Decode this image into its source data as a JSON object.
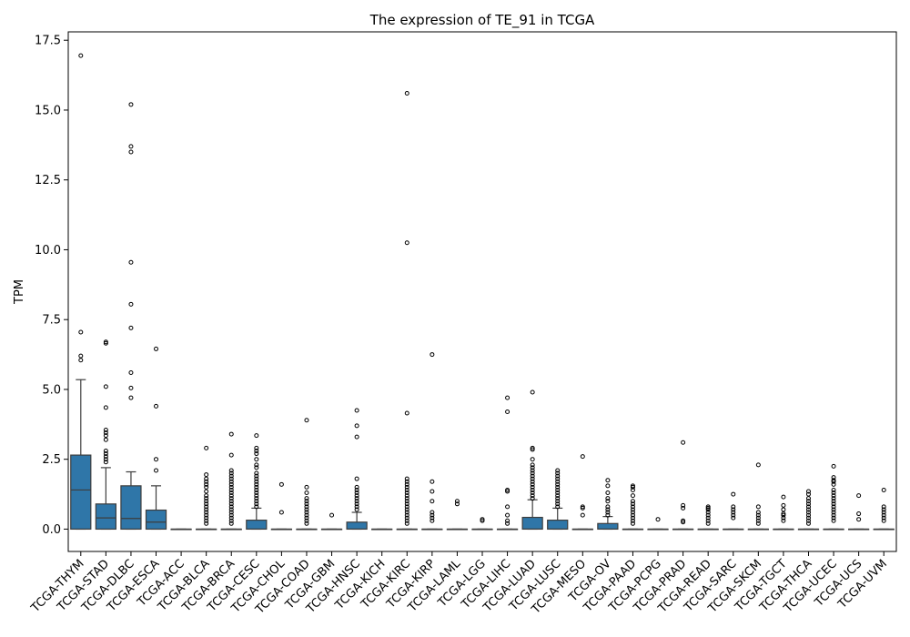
{
  "chart_data": {
    "type": "box",
    "title": "The expression of TE_91 in TCGA",
    "xlabel": "",
    "ylabel": "TPM",
    "ylim": [
      -0.8,
      17.8
    ],
    "yticks": [
      0.0,
      2.5,
      5.0,
      7.5,
      10.0,
      12.5,
      15.0,
      17.5
    ],
    "ytick_labels": [
      "0.0",
      "2.5",
      "5.0",
      "7.5",
      "10.0",
      "12.5",
      "15.0",
      "17.5"
    ],
    "box_color": "#2f76a8",
    "grid": false,
    "categories": [
      "TCGA-THYM",
      "TCGA-STAD",
      "TCGA-DLBC",
      "TCGA-ESCA",
      "TCGA-ACC",
      "TCGA-BLCA",
      "TCGA-BRCA",
      "TCGA-CESC",
      "TCGA-CHOL",
      "TCGA-COAD",
      "TCGA-GBM",
      "TCGA-HNSC",
      "TCGA-KICH",
      "TCGA-KIRC",
      "TCGA-KIRP",
      "TCGA-LAML",
      "TCGA-LGG",
      "TCGA-LIHC",
      "TCGA-LUAD",
      "TCGA-LUSC",
      "TCGA-MESO",
      "TCGA-OV",
      "TCGA-PAAD",
      "TCGA-PCPG",
      "TCGA-PRAD",
      "TCGA-READ",
      "TCGA-SARC",
      "TCGA-SKCM",
      "TCGA-TGCT",
      "TCGA-THCA",
      "TCGA-UCEC",
      "TCGA-UCS",
      "TCGA-UVM"
    ],
    "boxes": [
      {
        "q1": 0.0,
        "median": 1.4,
        "q3": 2.65,
        "whislo": 0.0,
        "whishi": 5.35,
        "fliers": [
          16.95,
          7.05,
          6.2,
          6.05
        ]
      },
      {
        "q1": 0.0,
        "median": 0.4,
        "q3": 0.9,
        "whislo": 0.0,
        "whishi": 2.2,
        "fliers": [
          6.7,
          6.65,
          5.1,
          4.35,
          3.55,
          3.45,
          3.35,
          3.2,
          2.8,
          2.7,
          2.6,
          2.5,
          2.4
        ]
      },
      {
        "q1": 0.0,
        "median": 0.38,
        "q3": 1.55,
        "whislo": 0.0,
        "whishi": 2.05,
        "fliers": [
          15.2,
          13.7,
          13.5,
          9.55,
          8.05,
          7.2,
          5.6,
          5.05,
          4.7
        ]
      },
      {
        "q1": 0.0,
        "median": 0.25,
        "q3": 0.68,
        "whislo": 0.0,
        "whishi": 1.55,
        "fliers": [
          6.45,
          4.4,
          2.5,
          2.1
        ]
      },
      {
        "q1": 0.0,
        "median": 0.0,
        "q3": 0.0,
        "whislo": 0.0,
        "whishi": 0.0,
        "fliers": []
      },
      {
        "q1": 0.0,
        "median": 0.0,
        "q3": 0.0,
        "whislo": 0.0,
        "whishi": 0.0,
        "fliers": [
          2.9,
          1.95,
          1.8,
          1.7,
          1.6,
          1.5,
          1.35,
          1.2,
          1.1,
          1.0,
          0.9,
          0.8,
          0.7,
          0.6,
          0.5,
          0.4,
          0.3,
          0.2
        ]
      },
      {
        "q1": 0.0,
        "median": 0.0,
        "q3": 0.0,
        "whislo": 0.0,
        "whishi": 0.0,
        "fliers": [
          3.4,
          2.65,
          2.1,
          2.0,
          1.9,
          1.8,
          1.7,
          1.6,
          1.5,
          1.4,
          1.3,
          1.2,
          1.1,
          1.0,
          0.9,
          0.8,
          0.7,
          0.6,
          0.5,
          0.4,
          0.3,
          0.2
        ]
      },
      {
        "q1": 0.0,
        "median": 0.0,
        "q3": 0.32,
        "whislo": 0.0,
        "whishi": 0.75,
        "fliers": [
          3.35,
          2.9,
          2.8,
          2.7,
          2.5,
          2.3,
          2.2,
          2.0,
          1.9,
          1.8,
          1.7,
          1.6,
          1.5,
          1.4,
          1.3,
          1.2,
          1.1,
          1.0,
          0.9,
          0.8
        ]
      },
      {
        "q1": 0.0,
        "median": 0.0,
        "q3": 0.0,
        "whislo": 0.0,
        "whishi": 0.0,
        "fliers": [
          1.6,
          0.6
        ]
      },
      {
        "q1": 0.0,
        "median": 0.0,
        "q3": 0.0,
        "whislo": 0.0,
        "whishi": 0.0,
        "fliers": [
          3.9,
          1.5,
          1.3,
          1.1,
          1.0,
          0.9,
          0.8,
          0.7,
          0.6,
          0.5,
          0.4,
          0.3,
          0.2
        ]
      },
      {
        "q1": 0.0,
        "median": 0.0,
        "q3": 0.0,
        "whislo": 0.0,
        "whishi": 0.0,
        "fliers": [
          0.5
        ]
      },
      {
        "q1": 0.0,
        "median": 0.0,
        "q3": 0.25,
        "whislo": 0.0,
        "whishi": 0.6,
        "fliers": [
          4.25,
          3.7,
          3.3,
          1.8,
          1.5,
          1.4,
          1.3,
          1.2,
          1.1,
          1.0,
          0.9,
          0.8,
          0.7
        ]
      },
      {
        "q1": 0.0,
        "median": 0.0,
        "q3": 0.0,
        "whislo": 0.0,
        "whishi": 0.0,
        "fliers": []
      },
      {
        "q1": 0.0,
        "median": 0.0,
        "q3": 0.0,
        "whislo": 0.0,
        "whishi": 0.0,
        "fliers": [
          15.6,
          10.25,
          4.15,
          1.8,
          1.7,
          1.6,
          1.5,
          1.4,
          1.3,
          1.2,
          1.1,
          1.0,
          0.9,
          0.8,
          0.7,
          0.6,
          0.5,
          0.4,
          0.3,
          0.2
        ]
      },
      {
        "q1": 0.0,
        "median": 0.0,
        "q3": 0.0,
        "whislo": 0.0,
        "whishi": 0.0,
        "fliers": [
          6.25,
          1.7,
          1.35,
          1.0,
          0.6,
          0.5,
          0.4,
          0.3
        ]
      },
      {
        "q1": 0.0,
        "median": 0.0,
        "q3": 0.0,
        "whislo": 0.0,
        "whishi": 0.0,
        "fliers": [
          1.0,
          0.9
        ]
      },
      {
        "q1": 0.0,
        "median": 0.0,
        "q3": 0.0,
        "whislo": 0.0,
        "whishi": 0.0,
        "fliers": [
          0.35,
          0.3
        ]
      },
      {
        "q1": 0.0,
        "median": 0.0,
        "q3": 0.0,
        "whislo": 0.0,
        "whishi": 0.0,
        "fliers": [
          4.7,
          4.2,
          1.4,
          1.35,
          0.8,
          0.5,
          0.3,
          0.2
        ]
      },
      {
        "q1": 0.0,
        "median": 0.0,
        "q3": 0.42,
        "whislo": 0.0,
        "whishi": 1.05,
        "fliers": [
          4.9,
          2.9,
          2.85,
          2.5,
          2.3,
          2.2,
          2.1,
          2.0,
          1.9,
          1.8,
          1.7,
          1.6,
          1.5,
          1.4,
          1.3,
          1.2,
          1.1
        ]
      },
      {
        "q1": 0.0,
        "median": 0.0,
        "q3": 0.32,
        "whislo": 0.0,
        "whishi": 0.75,
        "fliers": [
          2.1,
          2.0,
          1.9,
          1.8,
          1.7,
          1.6,
          1.5,
          1.4,
          1.3,
          1.2,
          1.1,
          1.0,
          0.9,
          0.8
        ]
      },
      {
        "q1": 0.0,
        "median": 0.0,
        "q3": 0.0,
        "whislo": 0.0,
        "whishi": 0.0,
        "fliers": [
          2.6,
          0.8,
          0.75,
          0.5
        ]
      },
      {
        "q1": 0.0,
        "median": 0.0,
        "q3": 0.2,
        "whislo": 0.0,
        "whishi": 0.45,
        "fliers": [
          1.75,
          1.55,
          1.3,
          1.1,
          1.0,
          0.8,
          0.7,
          0.6,
          0.5
        ]
      },
      {
        "q1": 0.0,
        "median": 0.0,
        "q3": 0.0,
        "whislo": 0.0,
        "whishi": 0.0,
        "fliers": [
          1.55,
          1.5,
          1.4,
          1.2,
          1.0,
          0.9,
          0.8,
          0.7,
          0.6,
          0.5,
          0.4,
          0.3,
          0.2
        ]
      },
      {
        "q1": 0.0,
        "median": 0.0,
        "q3": 0.0,
        "whislo": 0.0,
        "whishi": 0.0,
        "fliers": [
          0.35
        ]
      },
      {
        "q1": 0.0,
        "median": 0.0,
        "q3": 0.0,
        "whislo": 0.0,
        "whishi": 0.0,
        "fliers": [
          3.1,
          0.85,
          0.75,
          0.3,
          0.25
        ]
      },
      {
        "q1": 0.0,
        "median": 0.0,
        "q3": 0.0,
        "whislo": 0.0,
        "whishi": 0.0,
        "fliers": [
          0.8,
          0.75,
          0.7,
          0.6,
          0.5,
          0.4,
          0.3,
          0.2
        ]
      },
      {
        "q1": 0.0,
        "median": 0.0,
        "q3": 0.0,
        "whislo": 0.0,
        "whishi": 0.0,
        "fliers": [
          1.25,
          0.8,
          0.7,
          0.6,
          0.5,
          0.4
        ]
      },
      {
        "q1": 0.0,
        "median": 0.0,
        "q3": 0.0,
        "whislo": 0.0,
        "whishi": 0.0,
        "fliers": [
          2.3,
          0.8,
          0.6,
          0.5,
          0.4,
          0.3,
          0.2
        ]
      },
      {
        "q1": 0.0,
        "median": 0.0,
        "q3": 0.0,
        "whislo": 0.0,
        "whishi": 0.0,
        "fliers": [
          1.15,
          0.85,
          0.7,
          0.55,
          0.5,
          0.4,
          0.3
        ]
      },
      {
        "q1": 0.0,
        "median": 0.0,
        "q3": 0.0,
        "whislo": 0.0,
        "whishi": 0.0,
        "fliers": [
          1.35,
          1.25,
          1.1,
          1.0,
          0.9,
          0.8,
          0.7,
          0.6,
          0.5,
          0.4,
          0.3,
          0.2
        ]
      },
      {
        "q1": 0.0,
        "median": 0.0,
        "q3": 0.0,
        "whislo": 0.0,
        "whishi": 0.0,
        "fliers": [
          2.25,
          1.85,
          1.75,
          1.7,
          1.6,
          1.4,
          1.3,
          1.2,
          1.1,
          1.0,
          0.9,
          0.8,
          0.7,
          0.6,
          0.5,
          0.4,
          0.3
        ]
      },
      {
        "q1": 0.0,
        "median": 0.0,
        "q3": 0.0,
        "whislo": 0.0,
        "whishi": 0.0,
        "fliers": [
          1.2,
          0.55,
          0.35
        ]
      },
      {
        "q1": 0.0,
        "median": 0.0,
        "q3": 0.0,
        "whislo": 0.0,
        "whishi": 0.0,
        "fliers": [
          1.4,
          0.8,
          0.7,
          0.6,
          0.5,
          0.4,
          0.3
        ]
      }
    ]
  }
}
